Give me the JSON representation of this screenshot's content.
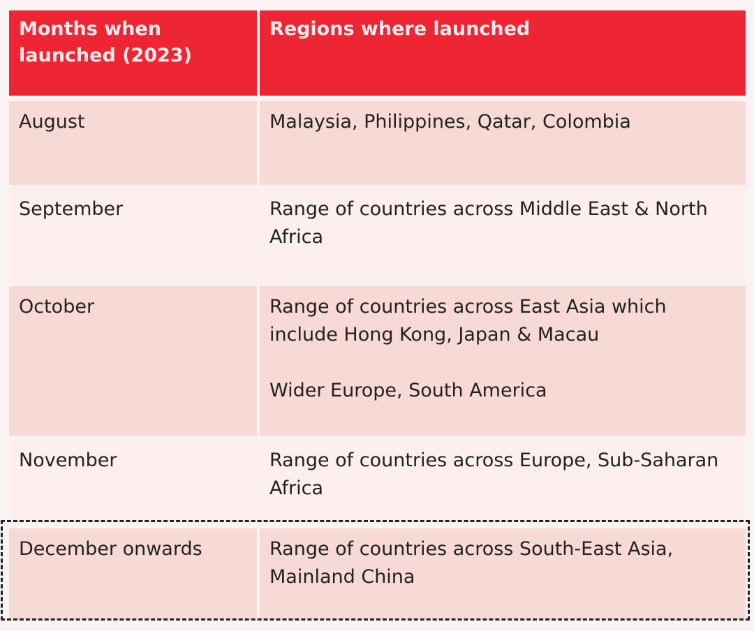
{
  "header": {
    "col1": "Months when launched (2023)",
    "col2": "Regions where launched"
  },
  "rows": [
    {
      "month": "August",
      "regions": [
        "Malaysia, Philippines, Qatar, Colombia"
      ]
    },
    {
      "month": "September",
      "regions": [
        "Range of countries across Middle East & North Africa"
      ]
    },
    {
      "month": "October",
      "regions": [
        "Range of countries across East Asia which include  Hong Kong, Japan & Macau",
        "Wider Europe,  South America"
      ]
    },
    {
      "month": "November",
      "regions": [
        "Range of countries across Europe, Sub-Saharan Africa"
      ]
    },
    {
      "month": "December onwards",
      "regions": [
        "Range of countries across South-East Asia, Mainland China"
      ]
    }
  ],
  "colors": {
    "header_bg": "#ee2532",
    "row_shaded": "#f7d9d6",
    "row_light": "#fcefee",
    "highlight_border": "#222222"
  },
  "highlighted_row": "December onwards"
}
